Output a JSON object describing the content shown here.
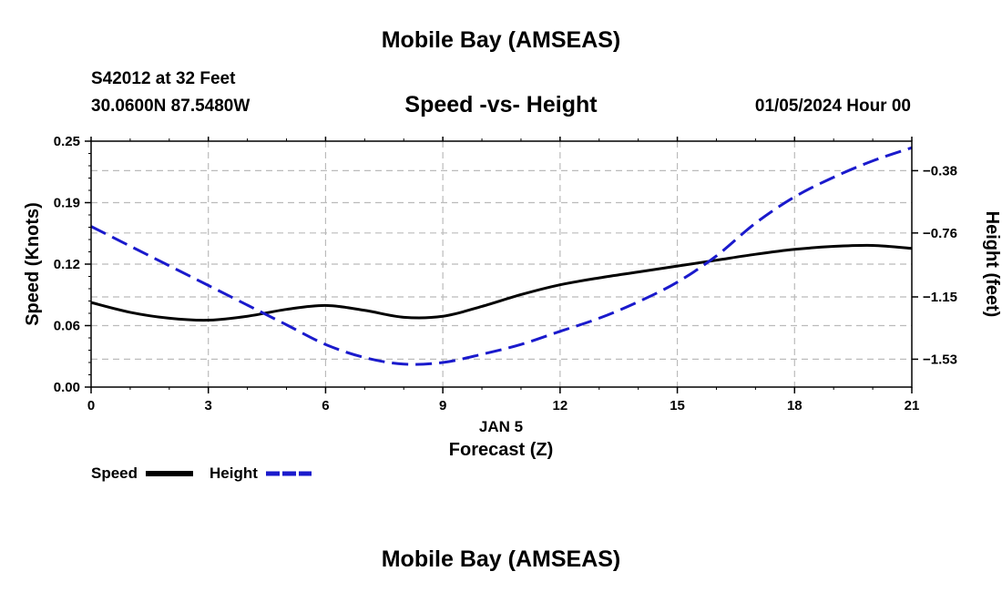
{
  "header": {
    "top_title": "Mobile Bay (AMSEAS)",
    "station": "S42012 at 32 Feet",
    "coords": "30.0600N  87.5480W",
    "chart_title": "Speed -vs- Height",
    "datetime": "01/05/2024 Hour 00",
    "bottom_title": "Mobile Bay (AMSEAS)"
  },
  "legend": {
    "speed_label": "Speed",
    "height_label": "Height"
  },
  "colors": {
    "speed": "#000000",
    "height": "#1a1acc",
    "grid": "#bbbbbb"
  },
  "chart_data": {
    "type": "line",
    "title": "Speed -vs- Height",
    "xlabel": "Forecast (Z)",
    "xlabel_date": "JAN 5",
    "ylabel": "Speed (Knots)",
    "ylabel_right": "Height (feet)",
    "xlim": [
      0,
      21
    ],
    "ylim": [
      0,
      0.25
    ],
    "ylim_right": [
      -1.7,
      -0.2
    ],
    "x_ticks": [
      0,
      3,
      6,
      9,
      12,
      15,
      18,
      21
    ],
    "x_tick_labels": [
      "0",
      "3",
      "6",
      "9",
      "12",
      "15",
      "18",
      "21"
    ],
    "y_ticks": [
      0,
      0.0625,
      0.125,
      0.1875,
      0.25
    ],
    "y_tick_labels": [
      "0.00",
      "0.06",
      "0.12",
      "0.19",
      "0.25"
    ],
    "y_right_ticks": [
      -1.53,
      -1.15,
      -0.76,
      -0.38
    ],
    "y_right_tick_labels": [
      "-1.53",
      "-1.15",
      "-0.76",
      "-0.38"
    ],
    "grid": true,
    "legend_position": "bottom-left",
    "series": [
      {
        "name": "Speed",
        "axis": "left",
        "style": "solid",
        "x": [
          0,
          1,
          2,
          3,
          4,
          5,
          6,
          7,
          8,
          9,
          10,
          11,
          12,
          13,
          14,
          15,
          16,
          17,
          18,
          19,
          20,
          21
        ],
        "values": [
          0.086,
          0.076,
          0.07,
          0.068,
          0.072,
          0.079,
          0.083,
          0.078,
          0.071,
          0.072,
          0.082,
          0.094,
          0.104,
          0.111,
          0.117,
          0.123,
          0.129,
          0.135,
          0.14,
          0.143,
          0.144,
          0.141
        ]
      },
      {
        "name": "Height",
        "axis": "right",
        "style": "dashed",
        "x": [
          0,
          1,
          2,
          3,
          4,
          5,
          6,
          7,
          8,
          9,
          10,
          11,
          12,
          13,
          14,
          15,
          16,
          17,
          18,
          19,
          20,
          21
        ],
        "values": [
          -0.72,
          -0.84,
          -0.96,
          -1.08,
          -1.2,
          -1.32,
          -1.44,
          -1.52,
          -1.56,
          -1.55,
          -1.5,
          -1.44,
          -1.36,
          -1.28,
          -1.18,
          -1.06,
          -0.9,
          -0.7,
          -0.54,
          -0.42,
          -0.32,
          -0.24
        ]
      }
    ]
  }
}
